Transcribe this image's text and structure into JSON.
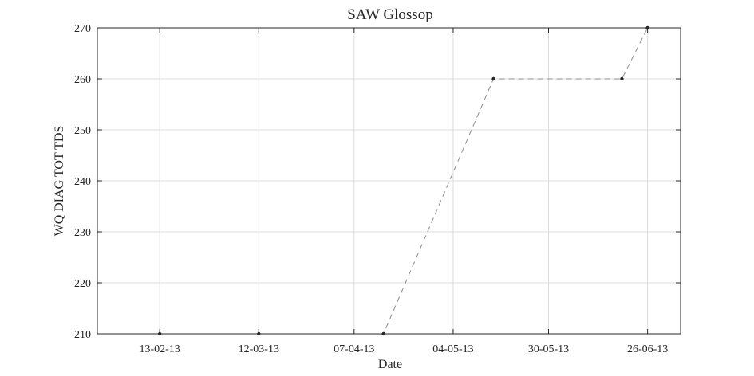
{
  "chart_data": {
    "type": "line",
    "title": "SAW Glossop",
    "xlabel": "Date",
    "ylabel": "WQ DIAG TOT TDS",
    "x_tick_labels": [
      "13-02-13",
      "12-03-13",
      "07-04-13",
      "04-05-13",
      "30-05-13",
      "26-06-13"
    ],
    "y_ticks": [
      210,
      220,
      230,
      240,
      250,
      260,
      270
    ],
    "ylim": [
      210,
      270
    ],
    "xlim": [
      "2013-01-27",
      "2013-07-05"
    ],
    "grid": true,
    "series": [
      {
        "line_style": "dashed",
        "line_color": "#8c8c8c",
        "marker_color": "#262626",
        "x": [
          "2013-02-13",
          "2013-03-12",
          "2013-04-15",
          "2013-05-15",
          "2013-06-19",
          "2013-06-26"
        ],
        "y": [
          210,
          210,
          210,
          260,
          260,
          270
        ]
      }
    ]
  }
}
